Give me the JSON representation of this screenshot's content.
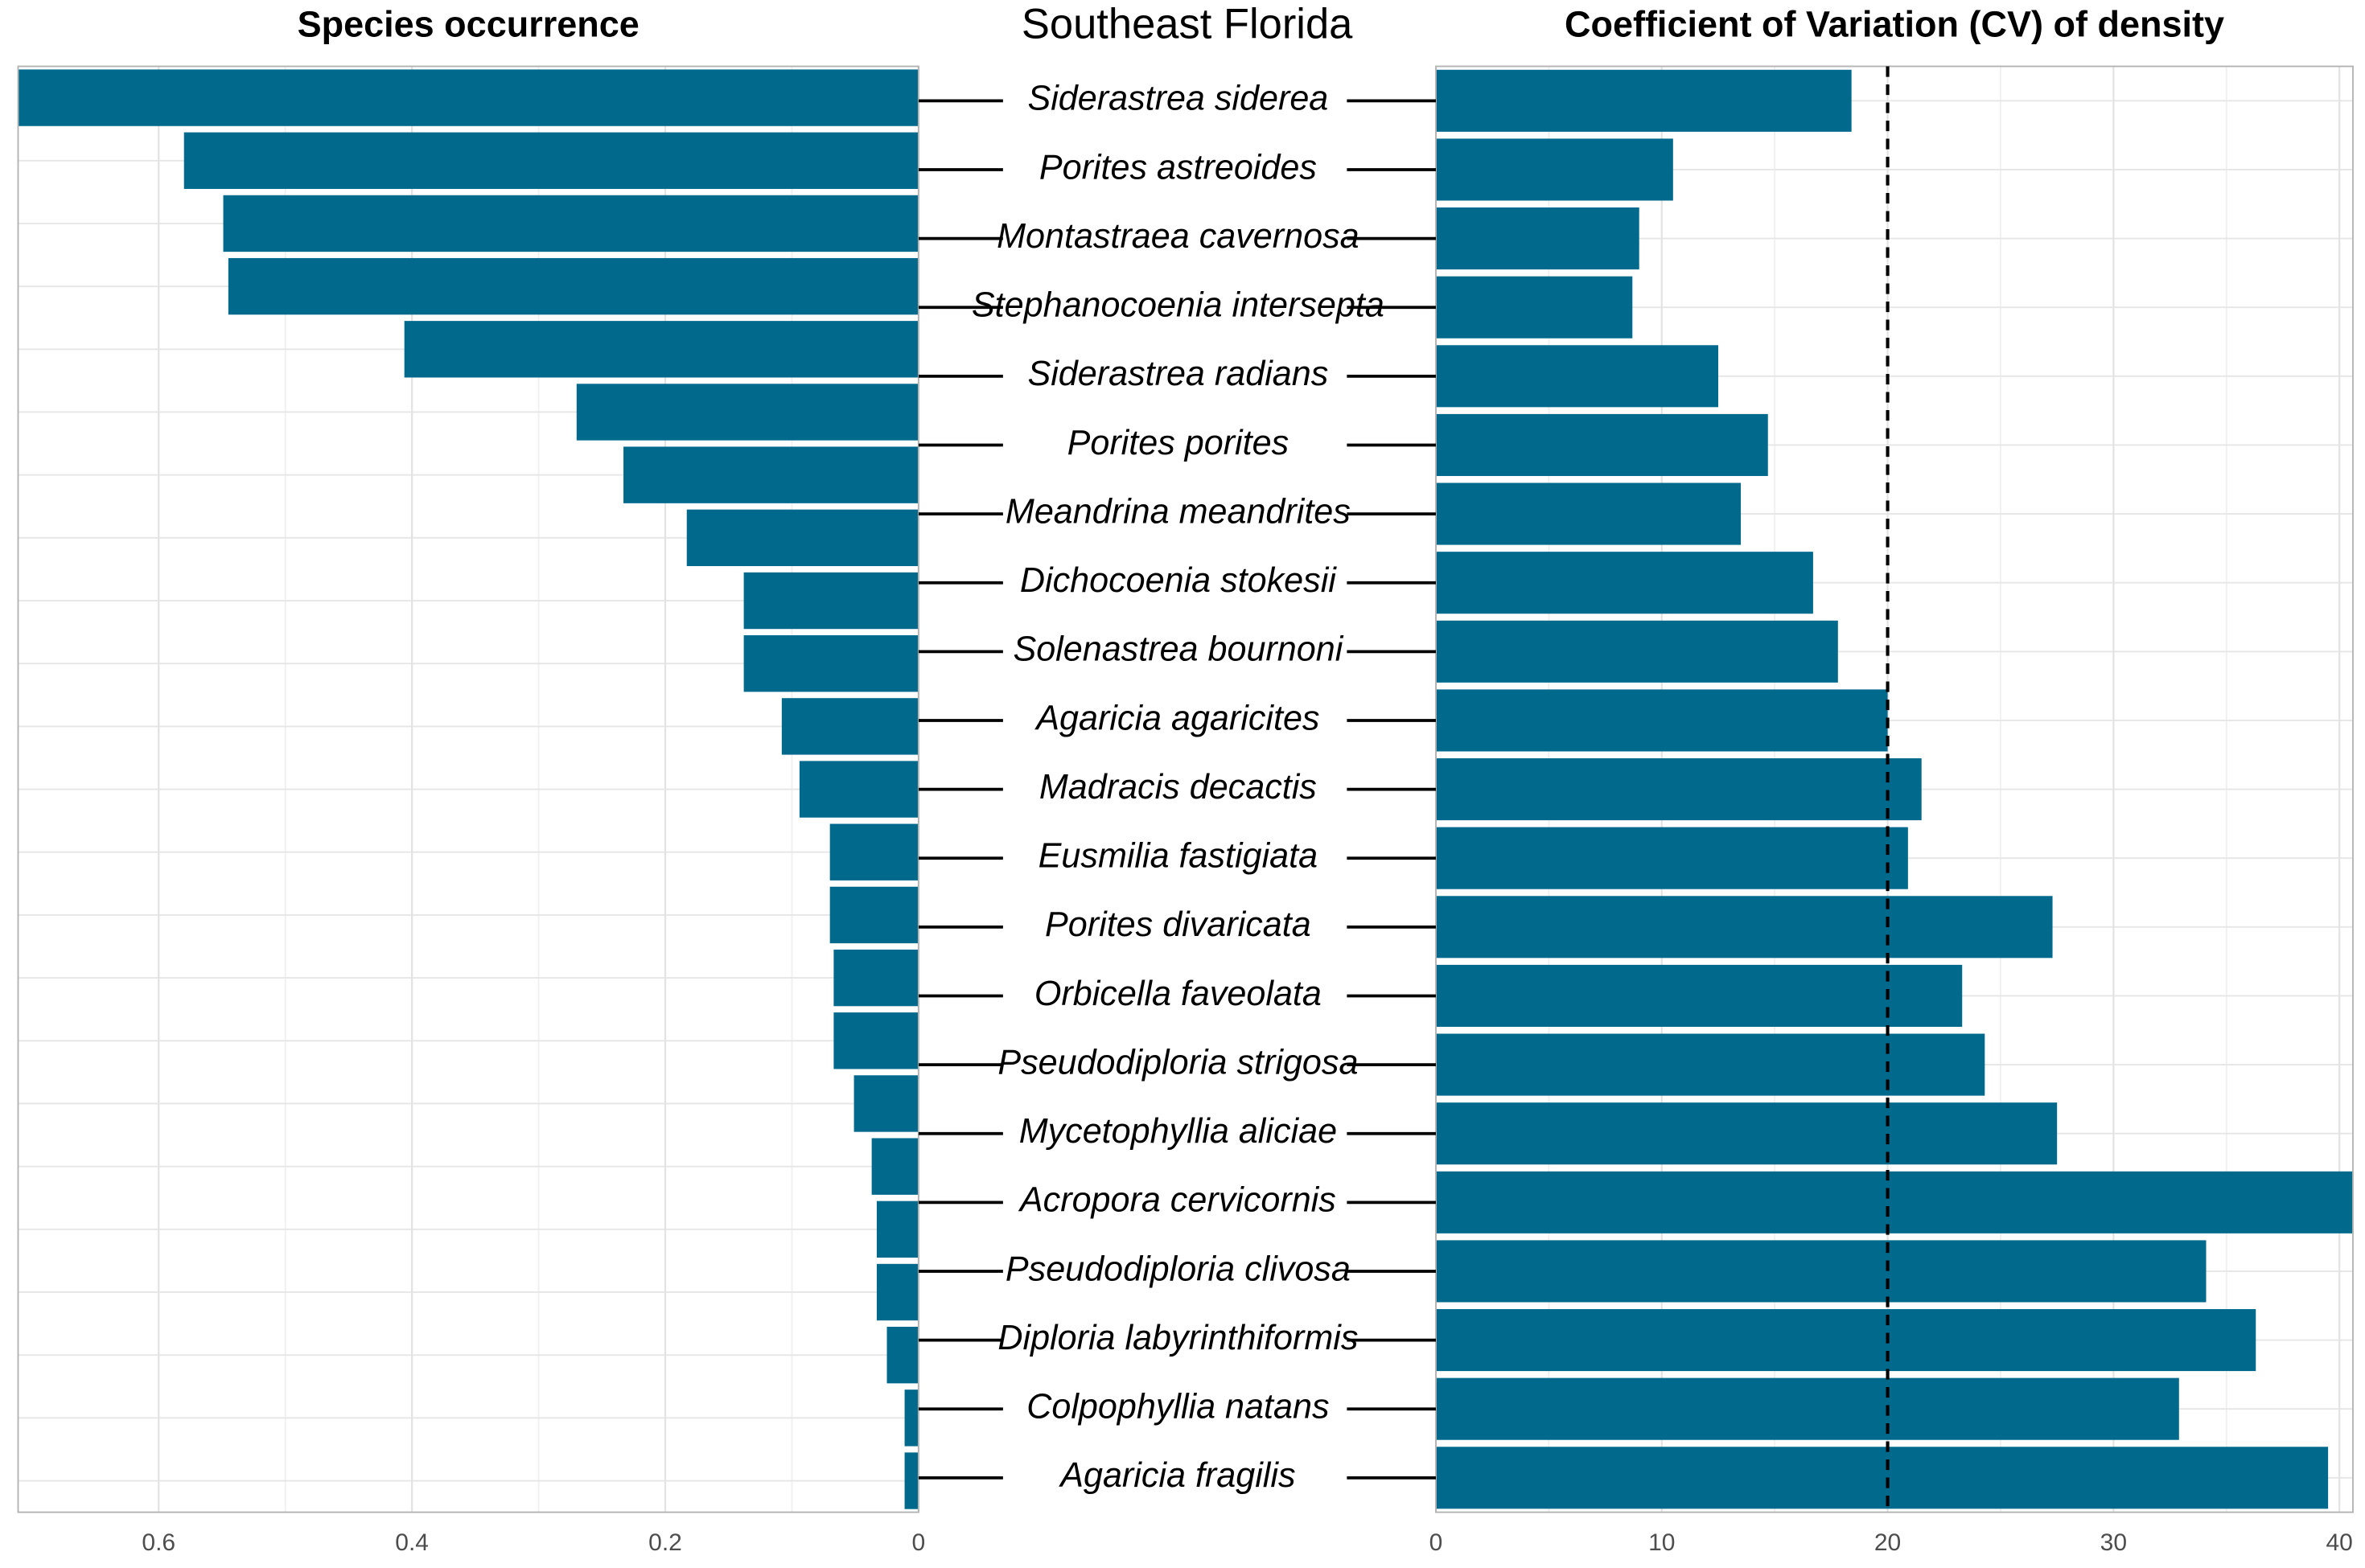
{
  "title": "Southeast Florida",
  "chart_data": [
    {
      "type": "hbar",
      "title": "Species occurrence",
      "reversed": true,
      "color": "#00698c",
      "grid": true,
      "categories": [
        null,
        null,
        null,
        null,
        null,
        null,
        null,
        null,
        null,
        null,
        null,
        null,
        null,
        null,
        null,
        null,
        null,
        null,
        null,
        null,
        null,
        null,
        null
      ],
      "values": [
        0.711,
        0.58,
        0.549,
        0.545,
        0.406,
        0.27,
        0.233,
        0.183,
        0.138,
        0.138,
        0.108,
        0.094,
        0.07,
        0.07,
        0.067,
        0.067,
        0.051,
        0.037,
        0.033,
        0.033,
        0.025,
        0.011,
        0.011
      ],
      "xlim": [
        0,
        0.711
      ],
      "xticks": [
        0,
        0.2,
        0.4,
        0.6
      ]
    },
    {
      "type": "hbar",
      "title": "Coefficient of Variation (CV) of density",
      "reversed": false,
      "color": "#00698c",
      "grid": true,
      "categories": [
        "Siderastrea siderea",
        "Porites astreoides",
        "Montastraea cavernosa",
        "Stephanocoenia intersepta",
        "Siderastrea radians",
        "Porites porites",
        "Meandrina meandrites",
        "Dichocoenia stokesii",
        "Solenastrea bournoni",
        "Agaricia agaricites",
        "Madracis decactis",
        "Eusmilia fastigiata",
        "Porites divaricata",
        "Orbicella faveolata",
        "Pseudodiploria strigosa",
        "Mycetophyllia aliciae",
        "Acropora cervicornis",
        "Pseudodiploria clivosa",
        "Diploria labyrinthiformis",
        "Colpophyllia natans",
        "Agaricia fragilis"
      ],
      "values": [
        18.4,
        10.5,
        9.0,
        8.7,
        12.5,
        14.7,
        13.5,
        16.7,
        17.8,
        20.0,
        21.5,
        20.9,
        27.3,
        23.3,
        24.3,
        27.5,
        40.6,
        34.1,
        36.3,
        32.9,
        39.5
      ],
      "xlim": [
        0,
        40.6
      ],
      "xticks": [
        0,
        10,
        20,
        30,
        40
      ],
      "reference_line": 20
    }
  ]
}
